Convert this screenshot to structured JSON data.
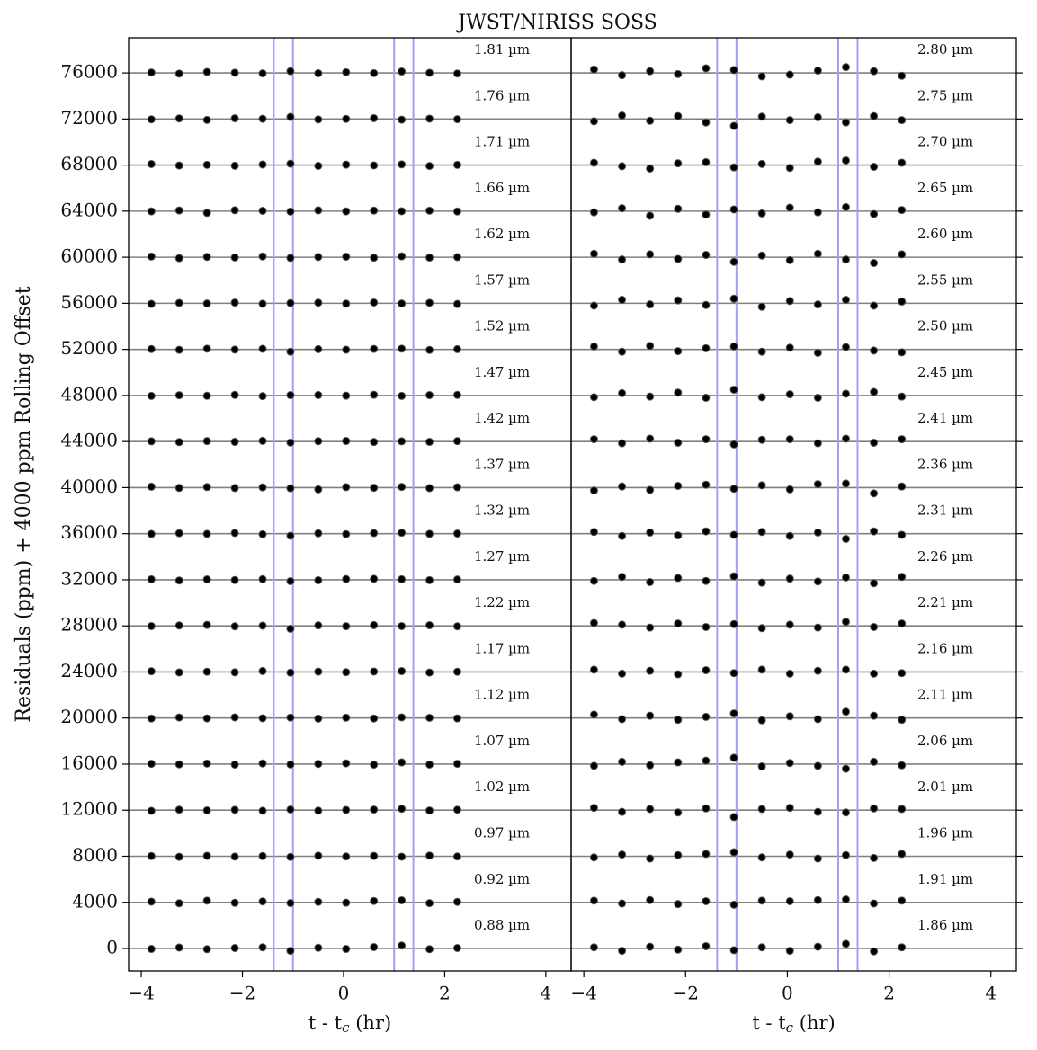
{
  "chart_data": [
    {
      "type": "scatter",
      "title": "JWST/NIRISS SOSS",
      "ylabel": "Residuals (ppm) + 4000 ppm Rolling Offset",
      "xlabel": [
        "t - t",
        "c",
        " (hr)"
      ],
      "color": "#000000",
      "vline_color": "#a0a0f8",
      "grid": true,
      "xlim": [
        -4.25,
        4.5
      ],
      "xticks": [
        {
          "value": -4,
          "label": "−4"
        },
        {
          "value": -2,
          "label": "−2"
        },
        0,
        2,
        4
      ],
      "ylim": [
        -1950,
        79050
      ],
      "yticks": [
        0,
        4000,
        8000,
        12000,
        16000,
        20000,
        24000,
        28000,
        32000,
        36000,
        40000,
        44000,
        48000,
        52000,
        56000,
        60000,
        64000,
        68000,
        72000,
        76000
      ],
      "vlines": [
        -1.38,
        -1.0,
        1.0,
        1.38
      ],
      "x": [
        -3.8,
        -3.25,
        -2.7,
        -2.15,
        -1.6,
        -1.05,
        -0.5,
        0.05,
        0.6,
        1.15,
        1.7,
        2.25
      ],
      "series": [
        {
          "name": "1.81 µm",
          "offset": 76000,
          "values": [
            40,
            -60,
            80,
            20,
            -40,
            150,
            -30,
            60,
            -20,
            120,
            10,
            -50
          ]
        },
        {
          "name": "1.76 µm",
          "offset": 72000,
          "values": [
            -30,
            50,
            -80,
            60,
            20,
            180,
            -40,
            10,
            70,
            -60,
            30,
            -20
          ]
        },
        {
          "name": "1.71 µm",
          "offset": 68000,
          "values": [
            90,
            -40,
            20,
            -60,
            50,
            120,
            -70,
            40,
            -30,
            60,
            -80,
            20
          ]
        },
        {
          "name": "1.66 µm",
          "offset": 64000,
          "values": [
            -20,
            60,
            -150,
            80,
            30,
            -40,
            70,
            -20,
            50,
            -10,
            40,
            -30
          ]
        },
        {
          "name": "1.62 µm",
          "offset": 60000,
          "values": [
            60,
            -80,
            30,
            -20,
            70,
            -60,
            20,
            50,
            -40,
            80,
            -30,
            10
          ]
        },
        {
          "name": "1.57 µm",
          "offset": 56000,
          "values": [
            -50,
            30,
            -20,
            60,
            -40,
            20,
            50,
            -30,
            70,
            -20,
            40,
            -60
          ]
        },
        {
          "name": "1.52 µm",
          "offset": 52000,
          "values": [
            30,
            -40,
            60,
            -20,
            50,
            -200,
            20,
            -30,
            40,
            60,
            -50,
            20
          ]
        },
        {
          "name": "1.47 µm",
          "offset": 48000,
          "values": [
            -40,
            20,
            -30,
            50,
            -60,
            30,
            40,
            -20,
            60,
            -40,
            30,
            50
          ]
        },
        {
          "name": "1.42 µm",
          "offset": 44000,
          "values": [
            20,
            -50,
            40,
            -30,
            60,
            -90,
            30,
            50,
            -40,
            20,
            -30,
            40
          ]
        },
        {
          "name": "1.37 µm",
          "offset": 40000,
          "values": [
            80,
            -30,
            50,
            -40,
            20,
            -60,
            -150,
            40,
            -20,
            60,
            -50,
            30
          ]
        },
        {
          "name": "1.32 µm",
          "offset": 36000,
          "values": [
            -30,
            40,
            -20,
            60,
            -50,
            -180,
            30,
            -40,
            50,
            80,
            -20,
            10
          ]
        },
        {
          "name": "1.27 µm",
          "offset": 32000,
          "values": [
            40,
            -60,
            30,
            -20,
            50,
            -120,
            -40,
            60,
            80,
            40,
            -30,
            20
          ]
        },
        {
          "name": "1.22 µm",
          "offset": 28000,
          "values": [
            -20,
            30,
            80,
            -40,
            20,
            -250,
            40,
            -30,
            60,
            -20,
            50,
            -40
          ]
        },
        {
          "name": "1.17 µm",
          "offset": 24000,
          "values": [
            60,
            -40,
            20,
            -30,
            80,
            -60,
            30,
            -20,
            40,
            70,
            -50,
            20
          ]
        },
        {
          "name": "1.12 µm",
          "offset": 20000,
          "values": [
            -40,
            50,
            -30,
            60,
            -20,
            40,
            -50,
            30,
            -40,
            60,
            20,
            -30
          ]
        },
        {
          "name": "1.07 µm",
          "offset": 16000,
          "values": [
            30,
            -20,
            50,
            -40,
            60,
            -30,
            20,
            70,
            -50,
            150,
            -40,
            30
          ]
        },
        {
          "name": "1.02 µm",
          "offset": 12000,
          "values": [
            -60,
            40,
            -20,
            30,
            -50,
            60,
            -40,
            20,
            50,
            120,
            -30,
            40
          ]
        },
        {
          "name": "0.97 µm",
          "offset": 8000,
          "values": [
            20,
            -50,
            40,
            -30,
            20,
            -60,
            50,
            -20,
            30,
            -40,
            60,
            -20
          ]
        },
        {
          "name": "0.92 µm",
          "offset": 4000,
          "values": [
            60,
            -80,
            150,
            -40,
            80,
            -60,
            40,
            -30,
            120,
            180,
            -70,
            40
          ]
        },
        {
          "name": "0.88 µm",
          "offset": 0,
          "values": [
            -40,
            80,
            -60,
            40,
            100,
            -200,
            60,
            -40,
            120,
            250,
            -60,
            40
          ]
        }
      ]
    },
    {
      "type": "scatter",
      "xlabel": [
        "t - t",
        "c",
        " (hr)"
      ],
      "color": "#000000",
      "vline_color": "#a0a0f8",
      "grid": true,
      "xlim": [
        -4.25,
        4.5
      ],
      "xticks": [
        {
          "value": -4,
          "label": "−4"
        },
        {
          "value": -2,
          "label": "−2"
        },
        0,
        2,
        4
      ],
      "ylim": [
        -1950,
        79050
      ],
      "yticks": [
        0,
        4000,
        8000,
        12000,
        16000,
        20000,
        24000,
        28000,
        32000,
        36000,
        40000,
        44000,
        48000,
        52000,
        56000,
        60000,
        64000,
        68000,
        72000,
        76000
      ],
      "vlines": [
        -1.38,
        -1.0,
        1.0,
        1.38
      ],
      "x": [
        -3.8,
        -3.25,
        -2.7,
        -2.15,
        -1.6,
        -1.05,
        -0.5,
        0.05,
        0.6,
        1.15,
        1.7,
        2.25
      ],
      "series": [
        {
          "name": "2.80 µm",
          "offset": 76000,
          "values": [
            300,
            -200,
            150,
            -100,
            400,
            250,
            -300,
            -150,
            200,
            500,
            150,
            -250
          ]
        },
        {
          "name": "2.75 µm",
          "offset": 72000,
          "values": [
            -200,
            300,
            -150,
            250,
            -300,
            -600,
            200,
            -100,
            150,
            -300,
            250,
            -100
          ]
        },
        {
          "name": "2.70 µm",
          "offset": 68000,
          "values": [
            200,
            -100,
            -300,
            150,
            250,
            -200,
            100,
            -250,
            300,
            400,
            -150,
            200
          ]
        },
        {
          "name": "2.65 µm",
          "offset": 64000,
          "values": [
            -100,
            250,
            -400,
            200,
            -300,
            150,
            -200,
            300,
            -100,
            350,
            -250,
            100
          ]
        },
        {
          "name": "2.60 µm",
          "offset": 60000,
          "values": [
            300,
            -200,
            250,
            -150,
            200,
            -400,
            150,
            -250,
            300,
            -200,
            -500,
            250
          ]
        },
        {
          "name": "2.55 µm",
          "offset": 56000,
          "values": [
            -200,
            300,
            -100,
            250,
            -150,
            400,
            -300,
            200,
            -100,
            300,
            -200,
            150
          ]
        },
        {
          "name": "2.50 µm",
          "offset": 52000,
          "values": [
            250,
            -200,
            300,
            -150,
            100,
            250,
            -200,
            150,
            -300,
            200,
            -100,
            -250
          ]
        },
        {
          "name": "2.45 µm",
          "offset": 48000,
          "values": [
            -150,
            200,
            -100,
            250,
            -200,
            500,
            -150,
            100,
            -200,
            150,
            300,
            -100
          ]
        },
        {
          "name": "2.41 µm",
          "offset": 44000,
          "values": [
            200,
            -150,
            250,
            -100,
            200,
            -250,
            150,
            200,
            -150,
            250,
            -100,
            200
          ]
        },
        {
          "name": "2.36 µm",
          "offset": 40000,
          "values": [
            -250,
            100,
            -200,
            150,
            250,
            -100,
            200,
            -150,
            300,
            350,
            -500,
            100
          ]
        },
        {
          "name": "2.31 µm",
          "offset": 36000,
          "values": [
            150,
            -200,
            100,
            -150,
            200,
            -100,
            150,
            -200,
            100,
            -450,
            200,
            -100
          ]
        },
        {
          "name": "2.26 µm",
          "offset": 32000,
          "values": [
            -100,
            250,
            -200,
            150,
            -100,
            300,
            -250,
            100,
            -150,
            200,
            -300,
            250
          ]
        },
        {
          "name": "2.21 µm",
          "offset": 28000,
          "values": [
            250,
            100,
            -150,
            200,
            -100,
            150,
            -200,
            100,
            -150,
            350,
            -100,
            200
          ]
        },
        {
          "name": "2.16 µm",
          "offset": 24000,
          "values": [
            200,
            -150,
            100,
            -200,
            150,
            -100,
            200,
            -150,
            100,
            200,
            -150,
            -100
          ]
        },
        {
          "name": "2.11 µm",
          "offset": 20000,
          "values": [
            300,
            -100,
            200,
            -150,
            100,
            400,
            -200,
            150,
            -100,
            550,
            200,
            -150
          ]
        },
        {
          "name": "2.06 µm",
          "offset": 16000,
          "values": [
            -150,
            200,
            -100,
            150,
            300,
            550,
            -200,
            100,
            -150,
            -400,
            200,
            -100
          ]
        },
        {
          "name": "2.01 µm",
          "offset": 12000,
          "values": [
            200,
            -150,
            100,
            -200,
            150,
            -600,
            100,
            200,
            -150,
            -200,
            150,
            100
          ]
        },
        {
          "name": "1.96 µm",
          "offset": 8000,
          "values": [
            -100,
            150,
            -200,
            100,
            200,
            350,
            -100,
            150,
            -200,
            100,
            -150,
            200
          ]
        },
        {
          "name": "1.91 µm",
          "offset": 4000,
          "values": [
            150,
            -100,
            200,
            -150,
            100,
            -200,
            150,
            100,
            200,
            250,
            -100,
            150
          ]
        },
        {
          "name": "1.86 µm",
          "offset": 0,
          "values": [
            100,
            -200,
            150,
            -100,
            200,
            -150,
            100,
            -200,
            150,
            400,
            -250,
            100
          ]
        }
      ]
    }
  ]
}
